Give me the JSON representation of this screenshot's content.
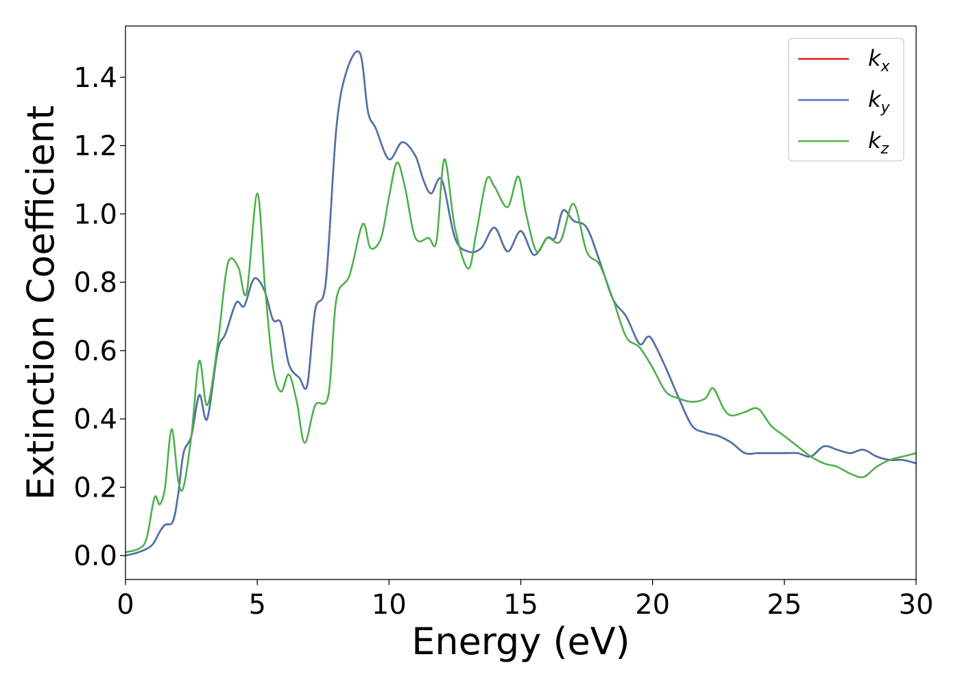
{
  "chart_data": {
    "type": "line",
    "title": "",
    "xlabel": "Energy (eV)",
    "ylabel": "Extinction Coefficient",
    "xlim": [
      0,
      30
    ],
    "ylim": [
      -0.07,
      1.55
    ],
    "xticks": [
      0,
      5,
      10,
      15,
      20,
      25,
      30
    ],
    "yticks": [
      0.0,
      0.2,
      0.4,
      0.6,
      0.8,
      1.0,
      1.2,
      1.4
    ],
    "xtick_labels": [
      "0",
      "5",
      "10",
      "15",
      "20",
      "25",
      "30"
    ],
    "ytick_labels": [
      "0.0",
      "0.2",
      "0.4",
      "0.6",
      "0.8",
      "1.0",
      "1.2",
      "1.4"
    ],
    "grid": false,
    "legend_position": "top-right",
    "series": [
      {
        "name": "k_x",
        "label_base": "k",
        "label_sub": "x",
        "color": "#e41a1c",
        "x": [
          0,
          0.5,
          1,
          1.3,
          1.5,
          1.8,
          2,
          2.2,
          2.5,
          2.8,
          3.1,
          3.5,
          3.8,
          4.2,
          4.5,
          4.8,
          5,
          5.3,
          5.6,
          5.9,
          6.2,
          6.6,
          6.9,
          7.2,
          7.6,
          8,
          8.4,
          8.9,
          9.2,
          9.5,
          10,
          10.5,
          11,
          11.3,
          11.6,
          12,
          12.5,
          13,
          13.5,
          14,
          14.5,
          15,
          15.5,
          16,
          16.3,
          16.6,
          17,
          17.5,
          18,
          18.5,
          19,
          19.5,
          19.8,
          20,
          20.5,
          21,
          21.5,
          22,
          22.5,
          23,
          23.5,
          24,
          24.5,
          25,
          25.5,
          26,
          26.5,
          27,
          27.5,
          28,
          28.5,
          29,
          29.5,
          30
        ],
        "y": [
          0,
          0.01,
          0.03,
          0.07,
          0.09,
          0.1,
          0.18,
          0.3,
          0.35,
          0.47,
          0.4,
          0.6,
          0.65,
          0.74,
          0.73,
          0.8,
          0.81,
          0.77,
          0.69,
          0.68,
          0.56,
          0.52,
          0.5,
          0.72,
          0.8,
          1.25,
          1.42,
          1.47,
          1.3,
          1.25,
          1.16,
          1.21,
          1.17,
          1.1,
          1.06,
          1.1,
          0.93,
          0.89,
          0.9,
          0.96,
          0.89,
          0.95,
          0.88,
          0.93,
          0.93,
          1.01,
          0.98,
          0.96,
          0.86,
          0.75,
          0.7,
          0.62,
          0.64,
          0.63,
          0.55,
          0.46,
          0.38,
          0.36,
          0.35,
          0.33,
          0.3,
          0.3,
          0.3,
          0.3,
          0.3,
          0.29,
          0.32,
          0.31,
          0.3,
          0.31,
          0.29,
          0.28,
          0.28,
          0.27
        ]
      },
      {
        "name": "k_y",
        "label_base": "k",
        "label_sub": "y",
        "color": "#4a75ad",
        "x": [
          0,
          0.5,
          1,
          1.3,
          1.5,
          1.8,
          2,
          2.2,
          2.5,
          2.8,
          3.1,
          3.5,
          3.8,
          4.2,
          4.5,
          4.8,
          5,
          5.3,
          5.6,
          5.9,
          6.2,
          6.6,
          6.9,
          7.2,
          7.6,
          8,
          8.4,
          8.9,
          9.2,
          9.5,
          10,
          10.5,
          11,
          11.3,
          11.6,
          12,
          12.5,
          13,
          13.5,
          14,
          14.5,
          15,
          15.5,
          16,
          16.3,
          16.6,
          17,
          17.5,
          18,
          18.5,
          19,
          19.5,
          19.8,
          20,
          20.5,
          21,
          21.5,
          22,
          22.5,
          23,
          23.5,
          24,
          24.5,
          25,
          25.5,
          26,
          26.5,
          27,
          27.5,
          28,
          28.5,
          29,
          29.5,
          30
        ],
        "y": [
          0,
          0.01,
          0.03,
          0.07,
          0.09,
          0.1,
          0.18,
          0.3,
          0.35,
          0.47,
          0.4,
          0.6,
          0.65,
          0.74,
          0.73,
          0.8,
          0.81,
          0.77,
          0.69,
          0.68,
          0.56,
          0.52,
          0.5,
          0.72,
          0.8,
          1.25,
          1.42,
          1.47,
          1.3,
          1.25,
          1.16,
          1.21,
          1.17,
          1.1,
          1.06,
          1.1,
          0.93,
          0.89,
          0.9,
          0.96,
          0.89,
          0.95,
          0.88,
          0.93,
          0.93,
          1.01,
          0.98,
          0.96,
          0.86,
          0.75,
          0.7,
          0.62,
          0.64,
          0.63,
          0.55,
          0.46,
          0.38,
          0.36,
          0.35,
          0.33,
          0.3,
          0.3,
          0.3,
          0.3,
          0.3,
          0.29,
          0.32,
          0.31,
          0.3,
          0.31,
          0.29,
          0.28,
          0.28,
          0.27
        ]
      },
      {
        "name": "k_z",
        "label_base": "k",
        "label_sub": "z",
        "color": "#4daf4a",
        "x": [
          0,
          0.5,
          0.8,
          1.1,
          1.3,
          1.5,
          1.75,
          2,
          2.2,
          2.5,
          2.8,
          3.1,
          3.5,
          3.8,
          4,
          4.3,
          4.6,
          5,
          5.3,
          5.6,
          5.9,
          6.2,
          6.5,
          6.8,
          7.2,
          7.7,
          8,
          8.5,
          9,
          9.3,
          9.7,
          10,
          10.3,
          10.6,
          11,
          11.5,
          11.8,
          12.1,
          12.5,
          13,
          13.3,
          13.7,
          14,
          14.5,
          14.9,
          15.2,
          15.6,
          16,
          16.5,
          17,
          17.5,
          18,
          18.5,
          19,
          19.5,
          20,
          20.5,
          21,
          21.5,
          22,
          22.3,
          22.7,
          23,
          23.5,
          24,
          24.5,
          25,
          25.5,
          26,
          26.5,
          27,
          27.5,
          28,
          28.5,
          29,
          29.5,
          30
        ],
        "y": [
          0.01,
          0.02,
          0.05,
          0.17,
          0.15,
          0.2,
          0.37,
          0.22,
          0.2,
          0.35,
          0.57,
          0.44,
          0.62,
          0.82,
          0.87,
          0.84,
          0.77,
          1.06,
          0.78,
          0.55,
          0.48,
          0.53,
          0.45,
          0.33,
          0.44,
          0.47,
          0.75,
          0.82,
          0.97,
          0.9,
          0.93,
          1.05,
          1.15,
          1.08,
          0.93,
          0.93,
          0.92,
          1.16,
          0.96,
          0.84,
          0.94,
          1.1,
          1.08,
          1.02,
          1.11,
          1.0,
          0.89,
          0.93,
          0.92,
          1.03,
          0.89,
          0.85,
          0.75,
          0.64,
          0.61,
          0.55,
          0.48,
          0.46,
          0.45,
          0.46,
          0.49,
          0.43,
          0.41,
          0.42,
          0.43,
          0.38,
          0.35,
          0.32,
          0.29,
          0.27,
          0.26,
          0.24,
          0.23,
          0.26,
          0.28,
          0.29,
          0.3
        ]
      }
    ]
  }
}
